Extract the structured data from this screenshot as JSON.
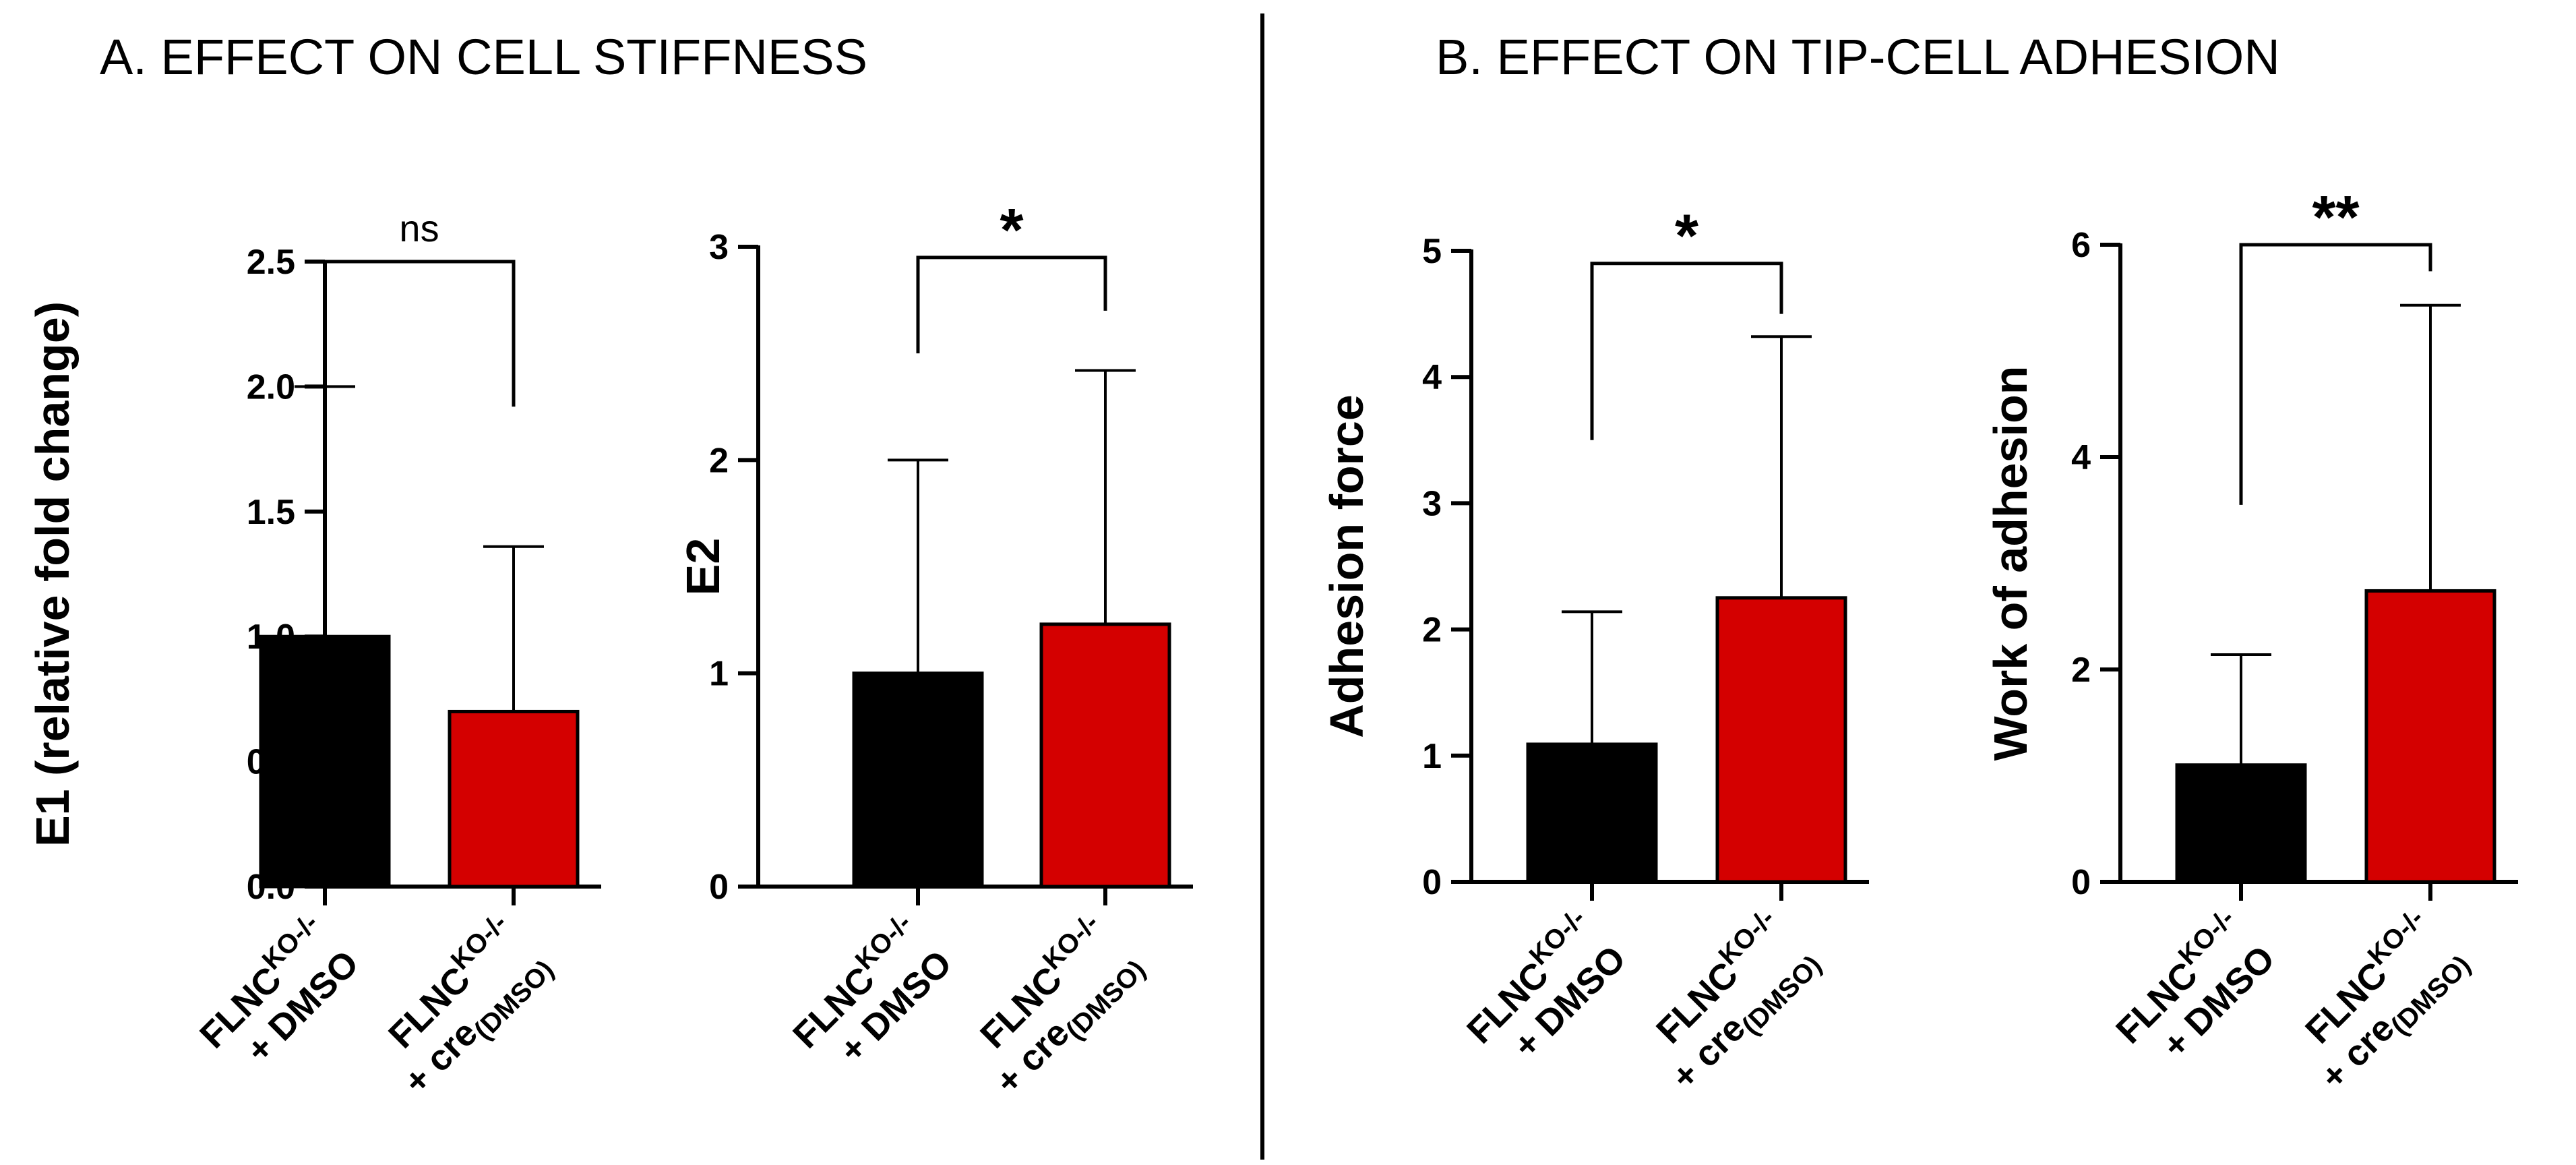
{
  "sections": [
    {
      "id": "A",
      "title": "A. EFFECT ON CELL STIFFNESS"
    },
    {
      "id": "B",
      "title": "B. EFFECT ON TIP-CELL ADHESION"
    }
  ],
  "colors": {
    "control": "#000000",
    "treatment": "#d40000",
    "axis": "#000000"
  },
  "category_labels": [
    {
      "base": "FLNC",
      "sup": "KO-/-",
      "line2": "+ DMSO",
      "sub": ""
    },
    {
      "base": "FLNC",
      "sup": "KO-/-",
      "line2": "+ cre",
      "sub": "(DMSO)"
    }
  ],
  "chart_data": [
    {
      "type": "bar",
      "section": "A",
      "ylabel": "E1 (relative fold change)",
      "categories": [
        "FLNCKO-/- + DMSO",
        "FLNCKO-/- + cre(DMSO)"
      ],
      "values": [
        1.0,
        0.7
      ],
      "error_upper": [
        2.0,
        1.36
      ],
      "ylim": [
        0,
        2.5
      ],
      "yticks": [
        0.0,
        0.5,
        1.0,
        1.5,
        2.0,
        2.5
      ],
      "ytick_labels": [
        "0.0",
        "0.5",
        "1.0",
        "1.5",
        "2.0",
        "2.5"
      ],
      "significance": "ns",
      "bracket_left_bottom": 2.3,
      "bracket_right_bottom": 1.92,
      "bracket_top": 2.5
    },
    {
      "type": "bar",
      "section": "A",
      "ylabel": "E2",
      "categories": [
        "FLNCKO-/- + DMSO",
        "FLNCKO-/- + cre(DMSO)"
      ],
      "values": [
        1.0,
        1.23
      ],
      "error_upper": [
        2.0,
        2.42
      ],
      "ylim": [
        0,
        3
      ],
      "yticks": [
        0,
        1,
        2,
        3
      ],
      "ytick_labels": [
        "0",
        "1",
        "2",
        "3"
      ],
      "significance": "*",
      "bracket_left_bottom": 2.5,
      "bracket_right_bottom": 2.7,
      "bracket_top": 2.95
    },
    {
      "type": "bar",
      "section": "B",
      "ylabel": "Adhesion force",
      "categories": [
        "FLNCKO-/- + DMSO",
        "FLNCKO-/- + cre(DMSO)"
      ],
      "values": [
        1.09,
        2.25
      ],
      "error_upper": [
        2.14,
        4.32
      ],
      "ylim": [
        0,
        5
      ],
      "yticks": [
        0,
        1,
        2,
        3,
        4,
        5
      ],
      "ytick_labels": [
        "0",
        "1",
        "2",
        "3",
        "4",
        "5"
      ],
      "significance": "*",
      "bracket_left_bottom": 3.5,
      "bracket_right_bottom": 4.5,
      "bracket_top": 4.9
    },
    {
      "type": "bar",
      "section": "B",
      "ylabel": "Work of adhesion",
      "categories": [
        "FLNCKO-/- + DMSO",
        "FLNCKO-/- + cre(DMSO)"
      ],
      "values": [
        1.1,
        2.74
      ],
      "error_upper": [
        2.14,
        5.43
      ],
      "ylim": [
        0,
        6
      ],
      "yticks": [
        0,
        2,
        4,
        6
      ],
      "ytick_labels": [
        "0",
        "2",
        "4",
        "6"
      ],
      "significance": "**",
      "bracket_left_bottom": 3.55,
      "bracket_right_bottom": 5.75,
      "bracket_top": 6.0
    }
  ]
}
